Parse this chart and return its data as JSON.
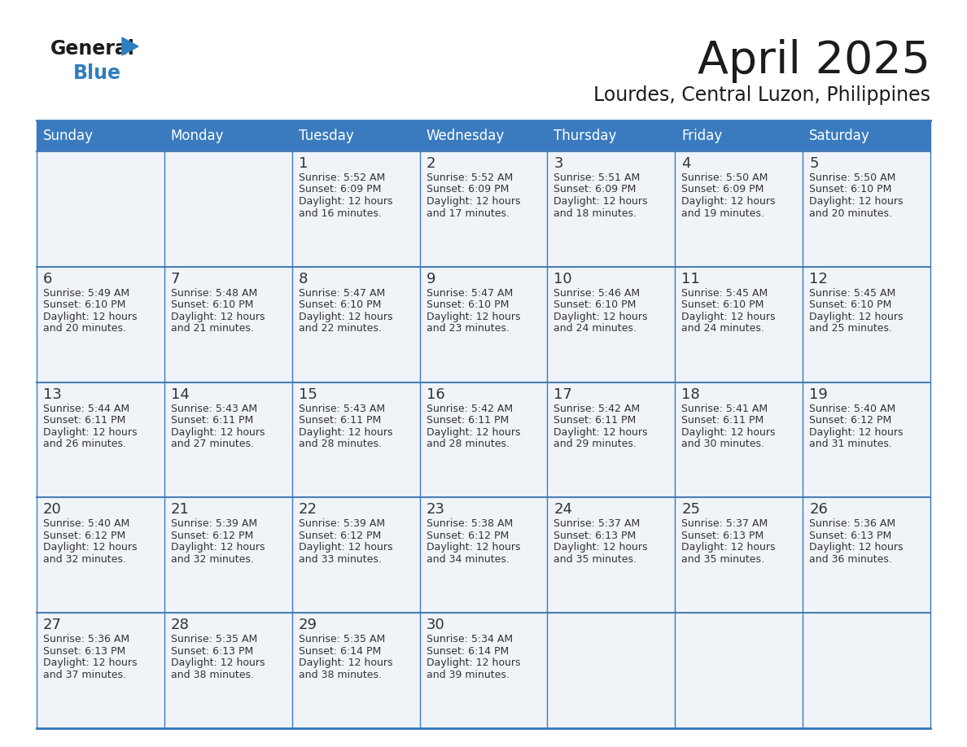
{
  "title": "April 2025",
  "subtitle": "Lourdes, Central Luzon, Philippines",
  "header_color": "#3a7bbf",
  "header_text_color": "#ffffff",
  "cell_bg_color": "#f0f4f8",
  "border_color": "#3a7bbf",
  "row_line_color": "#4a7fb5",
  "text_color": "#333333",
  "days_of_week": [
    "Sunday",
    "Monday",
    "Tuesday",
    "Wednesday",
    "Thursday",
    "Friday",
    "Saturday"
  ],
  "weeks": [
    [
      {
        "day": null,
        "info": null
      },
      {
        "day": null,
        "info": null
      },
      {
        "day": 1,
        "info": {
          "sunrise": "5:52 AM",
          "sunset": "6:09 PM",
          "daylight": "12 hours and 16 minutes."
        }
      },
      {
        "day": 2,
        "info": {
          "sunrise": "5:52 AM",
          "sunset": "6:09 PM",
          "daylight": "12 hours and 17 minutes."
        }
      },
      {
        "day": 3,
        "info": {
          "sunrise": "5:51 AM",
          "sunset": "6:09 PM",
          "daylight": "12 hours and 18 minutes."
        }
      },
      {
        "day": 4,
        "info": {
          "sunrise": "5:50 AM",
          "sunset": "6:09 PM",
          "daylight": "12 hours and 19 minutes."
        }
      },
      {
        "day": 5,
        "info": {
          "sunrise": "5:50 AM",
          "sunset": "6:10 PM",
          "daylight": "12 hours and 20 minutes."
        }
      }
    ],
    [
      {
        "day": 6,
        "info": {
          "sunrise": "5:49 AM",
          "sunset": "6:10 PM",
          "daylight": "12 hours and 20 minutes."
        }
      },
      {
        "day": 7,
        "info": {
          "sunrise": "5:48 AM",
          "sunset": "6:10 PM",
          "daylight": "12 hours and 21 minutes."
        }
      },
      {
        "day": 8,
        "info": {
          "sunrise": "5:47 AM",
          "sunset": "6:10 PM",
          "daylight": "12 hours and 22 minutes."
        }
      },
      {
        "day": 9,
        "info": {
          "sunrise": "5:47 AM",
          "sunset": "6:10 PM",
          "daylight": "12 hours and 23 minutes."
        }
      },
      {
        "day": 10,
        "info": {
          "sunrise": "5:46 AM",
          "sunset": "6:10 PM",
          "daylight": "12 hours and 24 minutes."
        }
      },
      {
        "day": 11,
        "info": {
          "sunrise": "5:45 AM",
          "sunset": "6:10 PM",
          "daylight": "12 hours and 24 minutes."
        }
      },
      {
        "day": 12,
        "info": {
          "sunrise": "5:45 AM",
          "sunset": "6:10 PM",
          "daylight": "12 hours and 25 minutes."
        }
      }
    ],
    [
      {
        "day": 13,
        "info": {
          "sunrise": "5:44 AM",
          "sunset": "6:11 PM",
          "daylight": "12 hours and 26 minutes."
        }
      },
      {
        "day": 14,
        "info": {
          "sunrise": "5:43 AM",
          "sunset": "6:11 PM",
          "daylight": "12 hours and 27 minutes."
        }
      },
      {
        "day": 15,
        "info": {
          "sunrise": "5:43 AM",
          "sunset": "6:11 PM",
          "daylight": "12 hours and 28 minutes."
        }
      },
      {
        "day": 16,
        "info": {
          "sunrise": "5:42 AM",
          "sunset": "6:11 PM",
          "daylight": "12 hours and 28 minutes."
        }
      },
      {
        "day": 17,
        "info": {
          "sunrise": "5:42 AM",
          "sunset": "6:11 PM",
          "daylight": "12 hours and 29 minutes."
        }
      },
      {
        "day": 18,
        "info": {
          "sunrise": "5:41 AM",
          "sunset": "6:11 PM",
          "daylight": "12 hours and 30 minutes."
        }
      },
      {
        "day": 19,
        "info": {
          "sunrise": "5:40 AM",
          "sunset": "6:12 PM",
          "daylight": "12 hours and 31 minutes."
        }
      }
    ],
    [
      {
        "day": 20,
        "info": {
          "sunrise": "5:40 AM",
          "sunset": "6:12 PM",
          "daylight": "12 hours and 32 minutes."
        }
      },
      {
        "day": 21,
        "info": {
          "sunrise": "5:39 AM",
          "sunset": "6:12 PM",
          "daylight": "12 hours and 32 minutes."
        }
      },
      {
        "day": 22,
        "info": {
          "sunrise": "5:39 AM",
          "sunset": "6:12 PM",
          "daylight": "12 hours and 33 minutes."
        }
      },
      {
        "day": 23,
        "info": {
          "sunrise": "5:38 AM",
          "sunset": "6:12 PM",
          "daylight": "12 hours and 34 minutes."
        }
      },
      {
        "day": 24,
        "info": {
          "sunrise": "5:37 AM",
          "sunset": "6:13 PM",
          "daylight": "12 hours and 35 minutes."
        }
      },
      {
        "day": 25,
        "info": {
          "sunrise": "5:37 AM",
          "sunset": "6:13 PM",
          "daylight": "12 hours and 35 minutes."
        }
      },
      {
        "day": 26,
        "info": {
          "sunrise": "5:36 AM",
          "sunset": "6:13 PM",
          "daylight": "12 hours and 36 minutes."
        }
      }
    ],
    [
      {
        "day": 27,
        "info": {
          "sunrise": "5:36 AM",
          "sunset": "6:13 PM",
          "daylight": "12 hours and 37 minutes."
        }
      },
      {
        "day": 28,
        "info": {
          "sunrise": "5:35 AM",
          "sunset": "6:13 PM",
          "daylight": "12 hours and 38 minutes."
        }
      },
      {
        "day": 29,
        "info": {
          "sunrise": "5:35 AM",
          "sunset": "6:14 PM",
          "daylight": "12 hours and 38 minutes."
        }
      },
      {
        "day": 30,
        "info": {
          "sunrise": "5:34 AM",
          "sunset": "6:14 PM",
          "daylight": "12 hours and 39 minutes."
        }
      },
      {
        "day": null,
        "info": null
      },
      {
        "day": null,
        "info": null
      },
      {
        "day": null,
        "info": null
      }
    ]
  ]
}
